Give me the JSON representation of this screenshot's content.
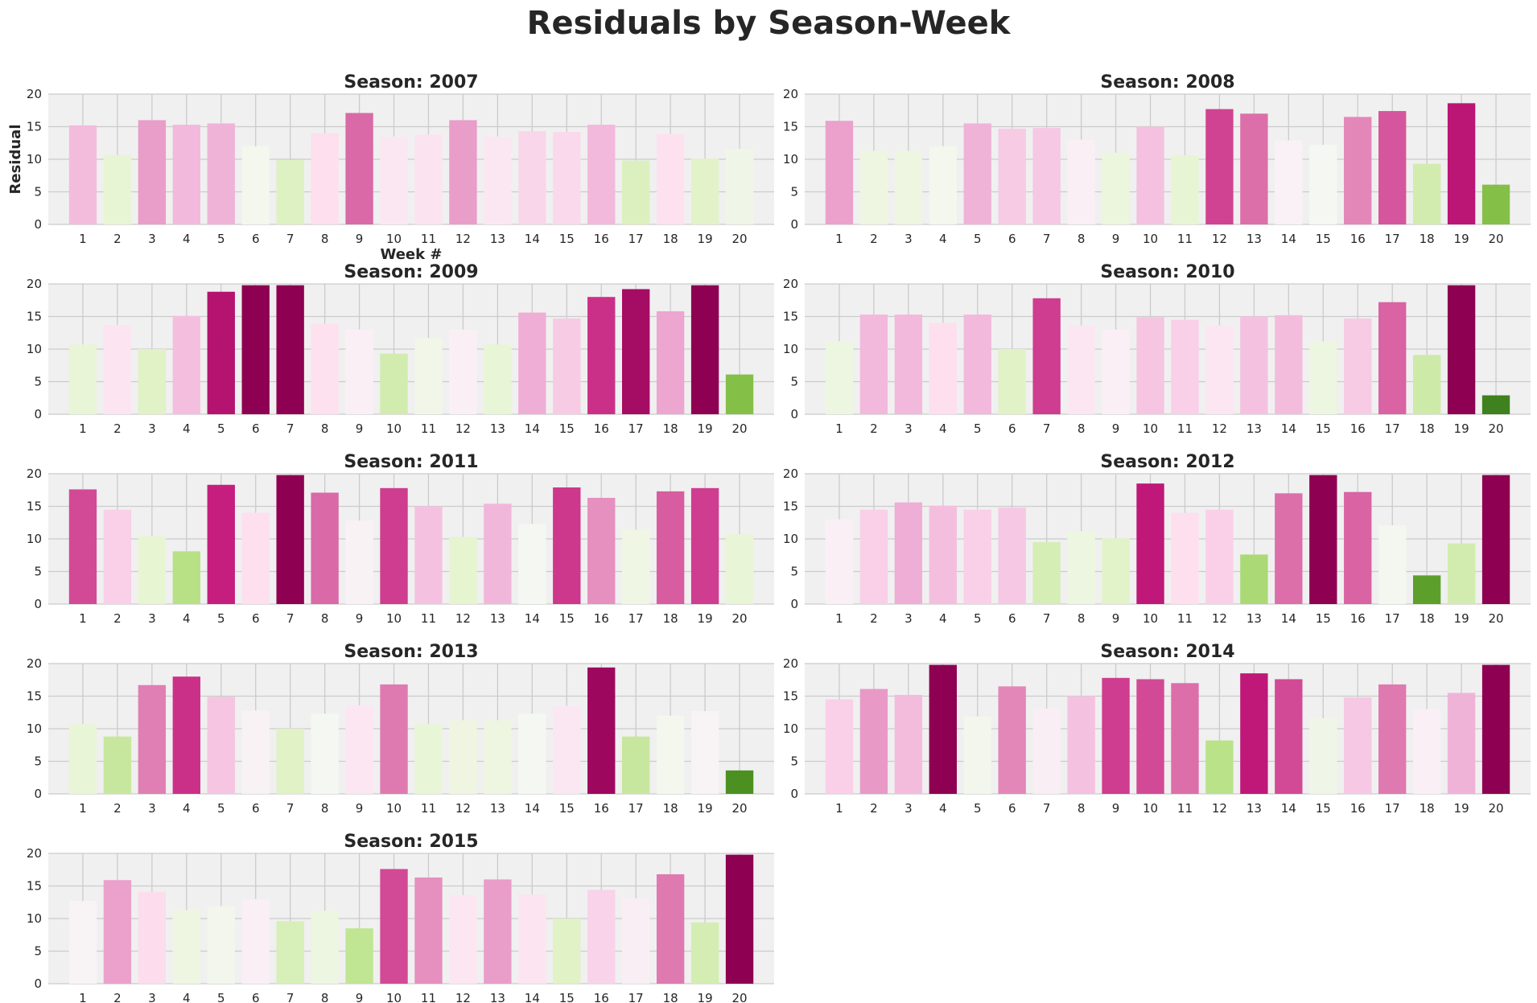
{
  "figure": {
    "title": "Residuals by Season-Week"
  },
  "chart_data": [
    {
      "type": "bar",
      "title": "Season: 2007",
      "ylabel": "Residual",
      "xlabel": "Week #",
      "categories": [
        "1",
        "2",
        "3",
        "4",
        "5",
        "6",
        "7",
        "8",
        "9",
        "10",
        "11",
        "12",
        "13",
        "14",
        "15",
        "16",
        "17",
        "18",
        "19",
        "20"
      ],
      "values": [
        15.2,
        10.6,
        16.0,
        15.3,
        15.5,
        12.0,
        9.9,
        14.0,
        17.1,
        13.5,
        13.8,
        16.0,
        13.5,
        14.3,
        14.2,
        15.3,
        9.8,
        13.9,
        10.1,
        11.6
      ],
      "ylim": [
        0,
        20
      ],
      "yticks": [
        0,
        5,
        10,
        15,
        20
      ],
      "grid": true
    },
    {
      "type": "bar",
      "title": "Season: 2008",
      "ylabel": "",
      "xlabel": "",
      "categories": [
        "1",
        "2",
        "3",
        "4",
        "5",
        "6",
        "7",
        "8",
        "9",
        "10",
        "11",
        "12",
        "13",
        "14",
        "15",
        "16",
        "17",
        "18",
        "19",
        "20"
      ],
      "values": [
        15.9,
        11.3,
        11.3,
        12.0,
        15.5,
        14.7,
        14.8,
        13.0,
        11.0,
        15.0,
        10.6,
        17.7,
        17.0,
        12.9,
        12.2,
        16.5,
        17.4,
        9.3,
        18.6,
        6.1
      ],
      "ylim": [
        0,
        20
      ],
      "yticks": [
        0,
        5,
        10,
        15,
        20
      ],
      "grid": true
    },
    {
      "type": "bar",
      "title": "Season: 2009",
      "ylabel": "",
      "xlabel": "",
      "categories": [
        "1",
        "2",
        "3",
        "4",
        "5",
        "6",
        "7",
        "8",
        "9",
        "10",
        "11",
        "12",
        "13",
        "14",
        "15",
        "16",
        "17",
        "18",
        "19",
        "20"
      ],
      "values": [
        10.7,
        13.7,
        10.0,
        15.1,
        18.8,
        19.8,
        19.8,
        13.9,
        13.0,
        9.3,
        11.7,
        13.0,
        10.7,
        15.6,
        14.7,
        18.0,
        19.2,
        15.8,
        19.8,
        6.1
      ],
      "ylim": [
        0,
        20
      ],
      "yticks": [
        0,
        5,
        10,
        15,
        20
      ],
      "grid": true
    },
    {
      "type": "bar",
      "title": "Season: 2010",
      "ylabel": "",
      "xlabel": "",
      "categories": [
        "1",
        "2",
        "3",
        "4",
        "5",
        "6",
        "7",
        "8",
        "9",
        "10",
        "11",
        "12",
        "13",
        "14",
        "15",
        "16",
        "17",
        "18",
        "19",
        "20"
      ],
      "values": [
        11.2,
        15.3,
        15.3,
        14.0,
        15.3,
        10.0,
        17.8,
        13.6,
        13.0,
        14.9,
        14.5,
        13.6,
        15.0,
        15.2,
        11.2,
        14.7,
        17.2,
        9.1,
        19.8,
        2.9
      ],
      "ylim": [
        0,
        20
      ],
      "yticks": [
        0,
        5,
        10,
        15,
        20
      ],
      "grid": true
    },
    {
      "type": "bar",
      "title": "Season: 2011",
      "ylabel": "",
      "xlabel": "",
      "categories": [
        "1",
        "2",
        "3",
        "4",
        "5",
        "6",
        "7",
        "8",
        "9",
        "10",
        "11",
        "12",
        "13",
        "14",
        "15",
        "16",
        "17",
        "18",
        "19",
        "20"
      ],
      "values": [
        17.6,
        14.5,
        10.4,
        8.1,
        18.3,
        14.0,
        19.8,
        17.1,
        12.8,
        17.8,
        15.0,
        10.3,
        15.4,
        12.3,
        17.9,
        16.3,
        11.4,
        17.3,
        17.8,
        10.7
      ],
      "ylim": [
        0,
        20
      ],
      "yticks": [
        0,
        5,
        10,
        15,
        20
      ],
      "grid": true
    },
    {
      "type": "bar",
      "title": "Season: 2012",
      "ylabel": "",
      "xlabel": "",
      "categories": [
        "1",
        "2",
        "3",
        "4",
        "5",
        "6",
        "7",
        "8",
        "9",
        "10",
        "11",
        "12",
        "13",
        "14",
        "15",
        "16",
        "17",
        "18",
        "19",
        "20"
      ],
      "values": [
        13.0,
        14.5,
        15.6,
        15.1,
        14.5,
        14.8,
        9.5,
        11.2,
        10.1,
        18.5,
        14.0,
        14.5,
        7.6,
        17.0,
        19.8,
        17.2,
        12.1,
        4.4,
        9.3,
        19.8
      ],
      "ylim": [
        0,
        20
      ],
      "yticks": [
        0,
        5,
        10,
        15,
        20
      ],
      "grid": true
    },
    {
      "type": "bar",
      "title": "Season: 2013",
      "ylabel": "",
      "xlabel": "",
      "categories": [
        "1",
        "2",
        "3",
        "4",
        "5",
        "6",
        "7",
        "8",
        "9",
        "10",
        "11",
        "12",
        "13",
        "14",
        "15",
        "16",
        "17",
        "18",
        "19",
        "20"
      ],
      "values": [
        10.7,
        8.8,
        16.7,
        18.0,
        14.9,
        12.8,
        10.0,
        12.3,
        13.6,
        16.8,
        10.7,
        11.3,
        11.3,
        12.3,
        13.5,
        19.4,
        8.8,
        12.0,
        12.7,
        3.6
      ],
      "ylim": [
        0,
        20
      ],
      "yticks": [
        0,
        5,
        10,
        15,
        20
      ],
      "grid": true
    },
    {
      "type": "bar",
      "title": "Season: 2014",
      "ylabel": "",
      "xlabel": "",
      "categories": [
        "1",
        "2",
        "3",
        "4",
        "5",
        "6",
        "7",
        "8",
        "9",
        "10",
        "11",
        "12",
        "13",
        "14",
        "15",
        "16",
        "17",
        "18",
        "19",
        "20"
      ],
      "values": [
        14.5,
        16.1,
        15.2,
        19.8,
        11.9,
        16.5,
        13.1,
        15.0,
        17.8,
        17.6,
        17.0,
        8.2,
        18.5,
        17.6,
        11.6,
        14.8,
        16.8,
        13.0,
        15.5,
        19.8
      ],
      "ylim": [
        0,
        20
      ],
      "yticks": [
        0,
        5,
        10,
        15,
        20
      ],
      "grid": true
    },
    {
      "type": "bar",
      "title": "Season: 2015",
      "ylabel": "",
      "xlabel": "",
      "categories": [
        "1",
        "2",
        "3",
        "4",
        "5",
        "6",
        "7",
        "8",
        "9",
        "10",
        "11",
        "12",
        "13",
        "14",
        "15",
        "16",
        "17",
        "18",
        "19",
        "20"
      ],
      "values": [
        12.7,
        15.9,
        14.1,
        11.3,
        11.9,
        13.0,
        9.6,
        11.2,
        8.5,
        17.6,
        16.3,
        13.6,
        16.0,
        13.7,
        10.0,
        14.4,
        13.1,
        16.8,
        9.4,
        19.8
      ],
      "ylim": [
        0,
        20
      ],
      "yticks": [
        0,
        5,
        10,
        15,
        20
      ],
      "grid": true
    }
  ],
  "colors": {
    "colormap": "PiYG (high residual = magenta, low residual = green)",
    "background": "#ffffff",
    "axes_face": "#f0f0f0",
    "grid": "#cbcbcb",
    "text": "#262626"
  }
}
